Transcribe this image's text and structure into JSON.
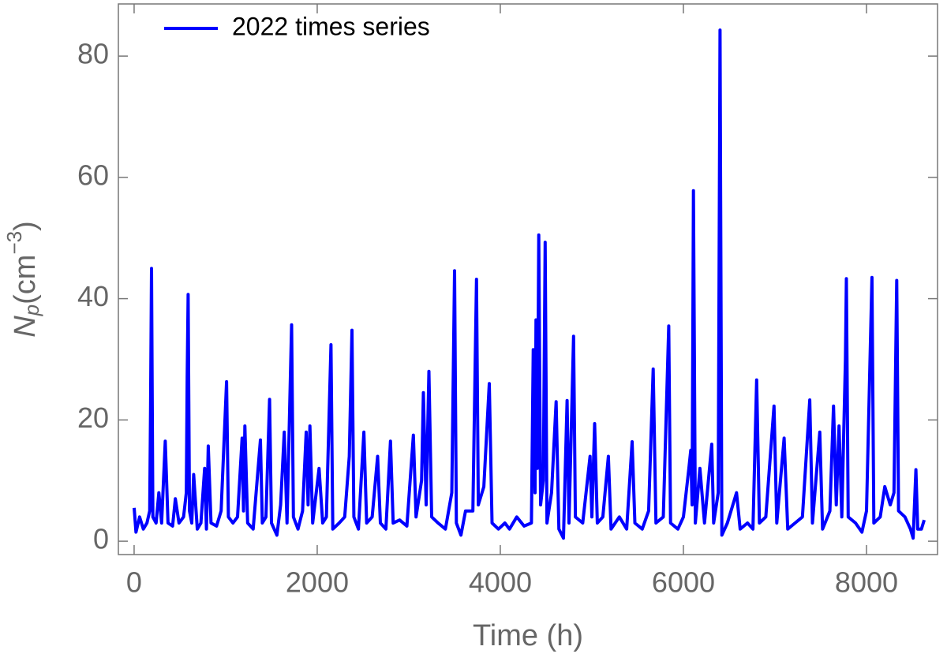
{
  "chart_data": {
    "type": "line",
    "x_label": "Time (h)",
    "y_label": [
      "N",
      "p",
      "(cm",
      "−3",
      ")"
    ],
    "x": [
      0,
      20,
      60,
      100,
      140,
      170,
      180,
      190,
      205,
      240,
      270,
      300,
      340,
      370,
      420,
      450,
      490,
      540,
      570,
      580,
      590,
      605,
      630,
      650,
      690,
      730,
      770,
      790,
      810,
      840,
      900,
      950,
      1010,
      1030,
      1080,
      1130,
      1180,
      1195,
      1210,
      1240,
      1300,
      1380,
      1400,
      1440,
      1480,
      1500,
      1560,
      1600,
      1640,
      1670,
      1720,
      1740,
      1790,
      1840,
      1880,
      1900,
      1920,
      1950,
      2020,
      2060,
      2100,
      2150,
      2170,
      2240,
      2300,
      2350,
      2380,
      2400,
      2450,
      2510,
      2540,
      2600,
      2660,
      2690,
      2750,
      2800,
      2830,
      2900,
      2980,
      3050,
      3080,
      3140,
      3160,
      3190,
      3220,
      3250,
      3320,
      3400,
      3470,
      3500,
      3520,
      3570,
      3620,
      3700,
      3740,
      3760,
      3820,
      3880,
      3910,
      3980,
      4050,
      4100,
      4180,
      4260,
      4340,
      4360,
      4380,
      4390,
      4405,
      4420,
      4440,
      4470,
      4490,
      4510,
      4560,
      4610,
      4640,
      4690,
      4730,
      4750,
      4800,
      4820,
      4900,
      4980,
      5000,
      5030,
      5060,
      5120,
      5180,
      5210,
      5300,
      5380,
      5440,
      5470,
      5550,
      5620,
      5670,
      5700,
      5780,
      5840,
      5860,
      5940,
      6000,
      6060,
      6080,
      6095,
      6110,
      6130,
      6180,
      6230,
      6310,
      6330,
      6380,
      6400,
      6420,
      6480,
      6580,
      6620,
      6700,
      6760,
      6800,
      6830,
      6900,
      6990,
      7020,
      7100,
      7140,
      7220,
      7300,
      7380,
      7410,
      7490,
      7520,
      7600,
      7640,
      7670,
      7700,
      7730,
      7770,
      7780,
      7800,
      7880,
      7950,
      8000,
      8060,
      8080,
      8150,
      8200,
      8260,
      8300,
      8330,
      8350,
      8420,
      8480,
      8510,
      8540,
      8560,
      8600,
      8630
    ],
    "series": [
      {
        "name": "2022 times series",
        "color": "#0000ff",
        "values": [
          5.5,
          1.5,
          4,
          2,
          3,
          5,
          22,
          45,
          4,
          3,
          8,
          3,
          16.5,
          3,
          2.5,
          7,
          3,
          4,
          8,
          27,
          40.7,
          5,
          3,
          11,
          2,
          3,
          12,
          2,
          15.7,
          3,
          2.5,
          5,
          26.3,
          4,
          3,
          4,
          17,
          5,
          19,
          3,
          2,
          16.7,
          3,
          4,
          23.4,
          3,
          1,
          6,
          18,
          3,
          35.7,
          4,
          2,
          5,
          18,
          6,
          19,
          3,
          12,
          3,
          4,
          32.4,
          2,
          3,
          4,
          14,
          34.8,
          4,
          2,
          18,
          3,
          4,
          14,
          3,
          2,
          16.5,
          3,
          3.5,
          2.5,
          17.5,
          4,
          10,
          24.5,
          6,
          28,
          4,
          3,
          2,
          8,
          44.6,
          3,
          1,
          5,
          5,
          43.2,
          6,
          9,
          26,
          3,
          2,
          3,
          2,
          4,
          2.5,
          3,
          31.6,
          8,
          36.5,
          12,
          50.5,
          6,
          10,
          49.3,
          3,
          8,
          23,
          2,
          0.5,
          23.2,
          3,
          33.8,
          4,
          3,
          14,
          4,
          19.4,
          3,
          4,
          14,
          2,
          4,
          2,
          16.4,
          3,
          2,
          5,
          28.4,
          3,
          4,
          35.5,
          3,
          2,
          4,
          12,
          15,
          6,
          57.8,
          3,
          12,
          3,
          16,
          3,
          8,
          84.3,
          1,
          3,
          8,
          2,
          3,
          2,
          26.6,
          3,
          4,
          22.3,
          3,
          17,
          2,
          3,
          4,
          23.3,
          3,
          18,
          2,
          5,
          22.3,
          6,
          19,
          4,
          30,
          43.3,
          4,
          3,
          1.5,
          5,
          43.5,
          3,
          4,
          9,
          6,
          8,
          43,
          5,
          4,
          2,
          0.5,
          11.8,
          2,
          2,
          3.5
        ]
      }
    ],
    "xlim": [
      -172,
      8776
    ],
    "ylim": [
      -2.2,
      88.6
    ],
    "xticks": [
      0,
      2000,
      4000,
      6000,
      8000
    ],
    "yticks": [
      0,
      20,
      40,
      60,
      80
    ],
    "legend": "top-left"
  }
}
